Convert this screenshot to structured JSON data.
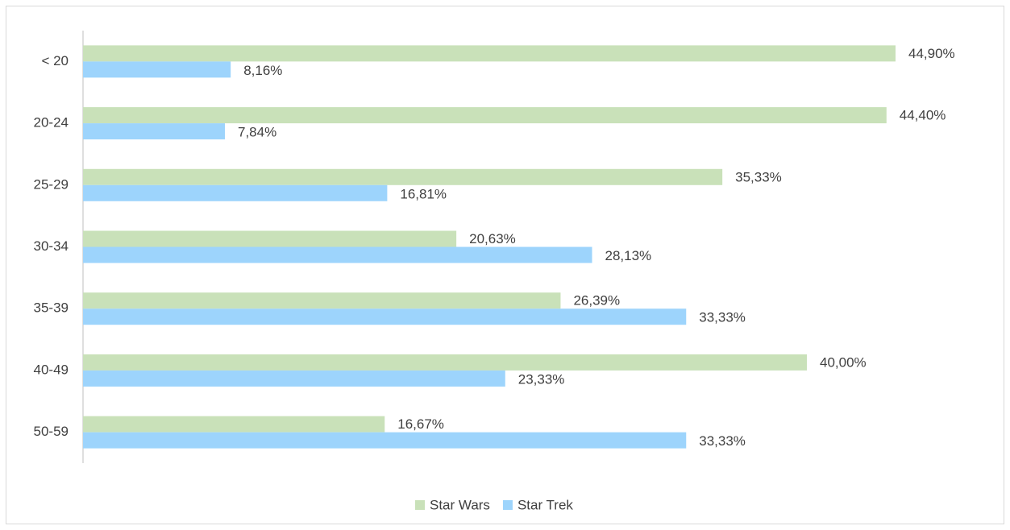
{
  "chart_data": {
    "type": "bar",
    "orientation": "horizontal",
    "categories": [
      "< 20",
      "20-24",
      "25-29",
      "30-34",
      "35-39",
      "40-49",
      "50-59"
    ],
    "series": [
      {
        "name": "Star Wars",
        "color": "#c9e1b9",
        "values": [
          44.9,
          44.4,
          35.33,
          20.63,
          26.39,
          40.0,
          16.67
        ],
        "value_labels": [
          "44,90%",
          "44,40%",
          "35,33%",
          "20,63%",
          "26,39%",
          "40,00%",
          "16,67%"
        ]
      },
      {
        "name": "Star Trek",
        "color": "#9dd4fc",
        "values": [
          8.16,
          7.84,
          16.81,
          28.13,
          33.33,
          23.33,
          33.33
        ],
        "value_labels": [
          "8,16%",
          "7,84%",
          "16,81%",
          "28,13%",
          "33,33%",
          "23,33%",
          "33,33%"
        ]
      }
    ],
    "legend": "bottom"
  }
}
